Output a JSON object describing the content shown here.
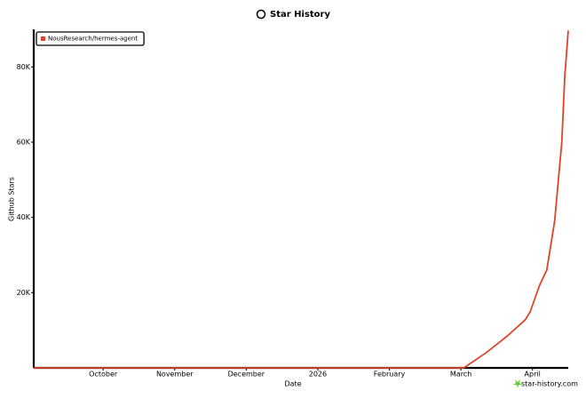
{
  "chart_data": {
    "type": "line",
    "title": "Star History",
    "x_label": "Date",
    "y_label": "Github Stars",
    "xlim": [
      9.03,
      16.5
    ],
    "xticks": [
      {
        "value": 10,
        "label": "October"
      },
      {
        "value": 11,
        "label": "November"
      },
      {
        "value": 12,
        "label": "December"
      },
      {
        "value": 13,
        "label": "2026"
      },
      {
        "value": 14,
        "label": "February"
      },
      {
        "value": 15,
        "label": "March"
      },
      {
        "value": 16,
        "label": "April"
      }
    ],
    "ylim": [
      0,
      90000
    ],
    "yticks": [
      {
        "value": 20000,
        "label": "20K"
      },
      {
        "value": 40000,
        "label": "40K"
      },
      {
        "value": 60000,
        "label": "60K"
      },
      {
        "value": 80000,
        "label": "80K"
      }
    ],
    "legend": "top-left",
    "watermark": "star-history.com",
    "series": [
      {
        "name": "NousResearch/hermes-agent",
        "color": "#dd4528",
        "x": [
          9.03,
          15.04,
          15.35,
          15.65,
          15.9,
          15.97,
          16.1,
          16.2,
          16.31,
          16.41,
          16.45,
          16.5
        ],
        "values": [
          0,
          0,
          4000,
          8500,
          12800,
          15000,
          22000,
          26000,
          39000,
          60000,
          77000,
          89700
        ]
      }
    ]
  }
}
